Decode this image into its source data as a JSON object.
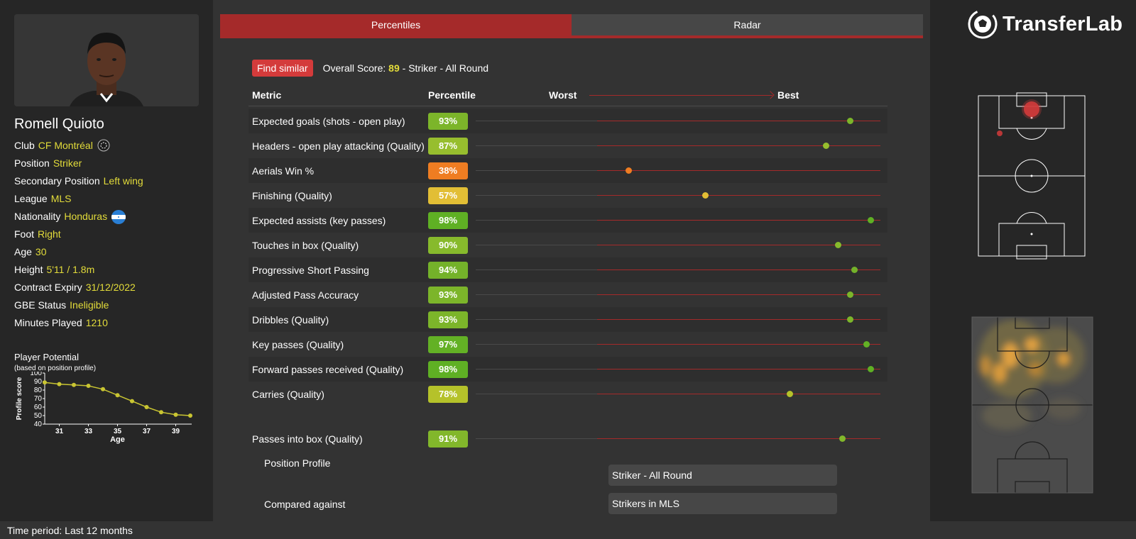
{
  "colors": {
    "accent_red": "#a52a2a",
    "value_yellow": "#e3dc3a",
    "dark_green": "#5fb024",
    "light_green": "#97be2e",
    "yellow_green": "#b5c22a",
    "orange": "#ef7d22",
    "yellow": "#e2be35",
    "track_light": "#4a4a4a",
    "track_red": "#a52a2a"
  },
  "player": {
    "name": "Romell Quioto",
    "details": [
      {
        "label": "Club",
        "value": "CF Montréal",
        "icon": "club-crest-icon"
      },
      {
        "label": "Position",
        "value": "Striker"
      },
      {
        "label": "Secondary Position",
        "value": "Left wing"
      },
      {
        "label": "League",
        "value": "MLS"
      },
      {
        "label": "Nationality",
        "value": "Honduras",
        "icon": "honduras-flag-icon"
      },
      {
        "label": "Foot",
        "value": "Right"
      },
      {
        "label": "Age",
        "value": "30"
      },
      {
        "label": "Height",
        "value": "5'11 / 1.8m"
      },
      {
        "label": "Contract Expiry",
        "value": "31/12/2022"
      },
      {
        "label": "GBE Status",
        "value": "Ineligible"
      },
      {
        "label": "Minutes Played",
        "value": "1210"
      }
    ]
  },
  "potential": {
    "title": "Player Potential",
    "subtitle": "(based on position profile)",
    "chart_data": {
      "type": "line",
      "x": [
        30,
        31,
        32,
        33,
        34,
        35,
        36,
        37,
        38,
        39,
        40
      ],
      "values": [
        89,
        87,
        86,
        85,
        81,
        74,
        67,
        60,
        54,
        51,
        50
      ],
      "xlabel": "Age",
      "ylabel": "Profile score",
      "xticks": [
        "31",
        "33",
        "35",
        "37",
        "39"
      ],
      "yticks": [
        "40",
        "50",
        "60",
        "70",
        "80",
        "90",
        "100"
      ],
      "ylim": [
        40,
        100
      ],
      "xlim": [
        30,
        40
      ]
    }
  },
  "tabs": [
    {
      "label": "Percentiles",
      "active": true
    },
    {
      "label": "Radar",
      "active": false
    }
  ],
  "find_similar": "Find similar",
  "overall": {
    "prefix": "Overall Score: ",
    "score": "89",
    "suffix": " - Striker - All Round"
  },
  "table_headers": {
    "metric": "Metric",
    "percentile": "Percentile",
    "worst": "Worst",
    "best": "Best"
  },
  "metrics": [
    {
      "name": "Expected goals (shots - open play)",
      "pct": 93,
      "label": "93%",
      "color": "#7cb52a"
    },
    {
      "name": "Headers - open play attacking (Quality)",
      "pct": 87,
      "label": "87%",
      "color": "#97be2e"
    },
    {
      "name": "Aerials Win %",
      "pct": 38,
      "label": "38%",
      "color": "#ef7d22"
    },
    {
      "name": "Finishing (Quality)",
      "pct": 57,
      "label": "57%",
      "color": "#e2be35"
    },
    {
      "name": "Expected assists (key passes)",
      "pct": 98,
      "label": "98%",
      "color": "#5fb024"
    },
    {
      "name": "Touches in box (Quality)",
      "pct": 90,
      "label": "90%",
      "color": "#87ba2c"
    },
    {
      "name": "Progressive Short Passing",
      "pct": 94,
      "label": "94%",
      "color": "#74b22a"
    },
    {
      "name": "Adjusted Pass Accuracy",
      "pct": 93,
      "label": "93%",
      "color": "#7cb52a"
    },
    {
      "name": "Dribbles (Quality)",
      "pct": 93,
      "label": "93%",
      "color": "#7cb52a"
    },
    {
      "name": "Key passes (Quality)",
      "pct": 97,
      "label": "97%",
      "color": "#63b125"
    },
    {
      "name": "Forward passes received (Quality)",
      "pct": 98,
      "label": "98%",
      "color": "#5fb024"
    },
    {
      "name": "Carries (Quality)",
      "pct": 78,
      "label": "78%",
      "color": "#b5c22a"
    }
  ],
  "extra_metrics": [
    {
      "name": "Passes into box (Quality)",
      "pct": 91,
      "label": "91%",
      "color": "#82b72b"
    }
  ],
  "position_profile": {
    "label": "Position Profile",
    "value": "Striker - All Round"
  },
  "compared_against": {
    "label": "Compared against",
    "value": "Strikers in MLS"
  },
  "brand": {
    "name": "TransferLab",
    "logo_icon": "football-logo-icon"
  },
  "footer": {
    "time_period": "Time period: Last 12 months"
  }
}
